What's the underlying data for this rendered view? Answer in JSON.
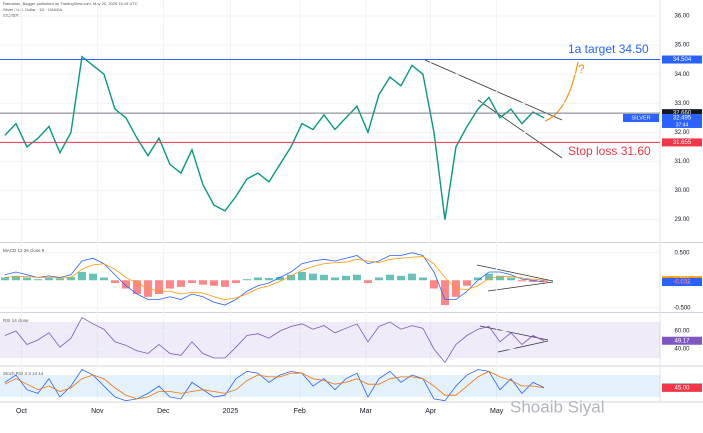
{
  "header": [
    "Ramadan_Bagger published on TradingView.com, May 20, 2025 15:15 UTC",
    "Silver / U.S. Dollar · 1D · OANDA"
  ],
  "watermark": "Shoaib Siyal",
  "x_axis": {
    "x": [
      0,
      1,
      2,
      3,
      4,
      5,
      6,
      7,
      8,
      9,
      10,
      11,
      12,
      13,
      14,
      15,
      16,
      17,
      18,
      19,
      20,
      21,
      22,
      23,
      24,
      25,
      26,
      27,
      28,
      29,
      30,
      31,
      32,
      33,
      34,
      35,
      36,
      37,
      38,
      39,
      40,
      41,
      42,
      43,
      44,
      45,
      46,
      47,
      48,
      49
    ],
    "xlim": [
      -0.45,
      59.55
    ],
    "xticks": [
      {
        "value": 1.5,
        "label": "Oct"
      },
      {
        "value": 8.4,
        "label": "Nov"
      },
      {
        "value": 14.4,
        "label": "Dec"
      },
      {
        "value": 20.5,
        "label": "2025"
      },
      {
        "value": 26.8,
        "label": "Feb"
      },
      {
        "value": 32.8,
        "label": "Mar"
      },
      {
        "value": 38.7,
        "label": "Apr"
      },
      {
        "value": 44.7,
        "label": "May"
      }
    ]
  },
  "chart_data": [
    {
      "type": "line",
      "title": "SILVER",
      "ylim": [
        28.3,
        36.55
      ],
      "yticks": [
        {
          "value": 36,
          "label": "36.00"
        },
        {
          "value": 35,
          "label": "35.00"
        },
        {
          "value": 34,
          "label": "34.00"
        },
        {
          "value": 33,
          "label": "33.00"
        },
        {
          "value": 32,
          "label": "32.00"
        },
        {
          "value": 31,
          "label": "31.00"
        },
        {
          "value": 30,
          "label": "30.00"
        },
        {
          "value": 29,
          "label": "29.00"
        }
      ],
      "series": [
        {
          "color": "#089981",
          "values": [
            31.9,
            32.3,
            31.5,
            31.8,
            32.2,
            31.3,
            32.0,
            34.6,
            34.3,
            34.0,
            32.8,
            32.5,
            31.8,
            31.2,
            31.8,
            30.9,
            30.6,
            31.4,
            30.2,
            29.5,
            29.3,
            29.8,
            30.4,
            30.6,
            30.3,
            30.9,
            31.5,
            32.3,
            32.1,
            32.6,
            32.1,
            32.5,
            32.9,
            32.0,
            33.3,
            33.9,
            33.6,
            34.3,
            34.0,
            32.0,
            29.0,
            31.5,
            32.2,
            32.8,
            33.2,
            32.5,
            32.8,
            32.3,
            32.7,
            32.5
          ]
        }
      ],
      "last_labels": [
        {
          "value": 34.504,
          "color": "#2962ff",
          "line": true
        },
        {
          "value": 32.66,
          "label": "32.660",
          "color": "#131722",
          "line": true,
          "line_color": "#787b86"
        },
        {
          "name": "SILVER",
          "value": 32.495,
          "countdown": "37:44",
          "color": "#2962ff"
        },
        {
          "value": 31.655,
          "color": "#f23645",
          "line": true
        }
      ],
      "annotations": [
        {
          "text": "1a target 34.50",
          "color": "#2962ff"
        },
        {
          "text": "Stop loss 31.60",
          "color": "#f23645"
        },
        {
          "text": "?",
          "color": "#f7931a"
        }
      ]
    },
    {
      "type": "line",
      "title": "MACD 12 26 close 9",
      "ylim": [
        -0.54,
        0.64
      ],
      "yticks": [
        {
          "value": 0.5,
          "label": "0.500"
        },
        {
          "value": -0.5,
          "label": "-0.500"
        }
      ],
      "series": [
        {
          "type": "bar",
          "color": "#26a69a",
          "negative_color": "#ff5252",
          "values": [
            0.05,
            0.08,
            0.05,
            0.02,
            0.04,
            0.03,
            0.06,
            0.15,
            0.12,
            0.05,
            -0.05,
            -0.15,
            -0.25,
            -0.3,
            -0.25,
            -0.15,
            -0.12,
            -0.05,
            -0.08,
            -0.1,
            -0.12,
            -0.05,
            0.02,
            0.05,
            0.04,
            0.06,
            0.1,
            0.15,
            0.12,
            0.1,
            0.05,
            0.08,
            0.1,
            -0.05,
            0.05,
            0.1,
            0.08,
            0.12,
            0.05,
            -0.15,
            -0.45,
            -0.3,
            -0.1,
            0.05,
            0.12,
            0.08,
            0.05,
            -0.02,
            -0.03,
            -0.033
          ]
        },
        {
          "color": "#2962ff",
          "values": [
            0.1,
            0.15,
            0.1,
            0.05,
            0.08,
            0.05,
            0.1,
            0.35,
            0.4,
            0.3,
            0.1,
            -0.1,
            -0.25,
            -0.35,
            -0.35,
            -0.3,
            -0.35,
            -0.25,
            -0.3,
            -0.4,
            -0.45,
            -0.35,
            -0.2,
            -0.1,
            -0.05,
            0.05,
            0.15,
            0.3,
            0.35,
            0.38,
            0.35,
            0.4,
            0.45,
            0.3,
            0.35,
            0.45,
            0.45,
            0.5,
            0.45,
            0.15,
            -0.35,
            -0.35,
            -0.2,
            0,
            0.15,
            0.15,
            0.1,
            0.02,
            0,
            -0.032
          ]
        },
        {
          "color": "#ff9800",
          "values": [
            0.05,
            0.07,
            0.07,
            0.05,
            0.05,
            0.04,
            0.05,
            0.2,
            0.28,
            0.3,
            0.2,
            0.05,
            -0.05,
            -0.15,
            -0.2,
            -0.2,
            -0.25,
            -0.22,
            -0.23,
            -0.3,
            -0.35,
            -0.32,
            -0.25,
            -0.15,
            -0.1,
            -0.02,
            0.08,
            0.18,
            0.25,
            0.3,
            0.32,
            0.33,
            0.38,
            0.35,
            0.32,
            0.38,
            0.4,
            0.42,
            0.43,
            0.3,
            0.05,
            -0.15,
            -0.17,
            -0.1,
            0.03,
            0.07,
            0.07,
            0.04,
            0.02,
            0.001
          ]
        }
      ],
      "last_labels": [
        {
          "value": 0.001,
          "color": "#ff9800"
        },
        {
          "value": -0.032,
          "color": "#2962ff"
        },
        {
          "value": -0.033,
          "color": "#ff5252",
          "text_only": true
        }
      ]
    },
    {
      "type": "line",
      "title": "RSI 14 close",
      "ylim": [
        22.2,
        77.8
      ],
      "yticks": [
        {
          "value": 60,
          "label": "60.00"
        },
        {
          "value": 40,
          "label": "40.00"
        }
      ],
      "band": {
        "range": [
          30,
          70
        ],
        "color": "#7e57c2"
      },
      "series": [
        {
          "color": "#7e57c2",
          "values": [
            55,
            60,
            45,
            50,
            58,
            42,
            52,
            75,
            68,
            62,
            48,
            44,
            38,
            35,
            45,
            35,
            33,
            48,
            35,
            30,
            30,
            42,
            55,
            57,
            52,
            60,
            65,
            68,
            62,
            66,
            58,
            63,
            68,
            48,
            65,
            70,
            62,
            66,
            63,
            40,
            25,
            45,
            55,
            62,
            65,
            48,
            58,
            45,
            55,
            49.17
          ]
        }
      ],
      "last_labels": [
        {
          "value": 49.17,
          "color": "#7e57c2"
        }
      ]
    },
    {
      "type": "line",
      "title": "Stoch RSI 3 3 14 14",
      "ylim": [
        10,
        100
      ],
      "yticks": [],
      "band": {
        "range": [
          20,
          80
        ],
        "color": "#2196f3"
      },
      "series": [
        {
          "color": "#2962ff",
          "values": [
            60,
            80,
            40,
            30,
            70,
            20,
            50,
            95,
            80,
            50,
            20,
            10,
            15,
            30,
            50,
            20,
            15,
            60,
            40,
            20,
            25,
            70,
            90,
            85,
            60,
            80,
            90,
            85,
            50,
            70,
            40,
            70,
            85,
            20,
            70,
            90,
            60,
            80,
            70,
            15,
            10,
            50,
            80,
            95,
            90,
            40,
            70,
            30,
            60,
            45.98
          ]
        },
        {
          "color": "#ff6d00",
          "values": [
            55,
            70,
            55,
            40,
            50,
            35,
            45,
            70,
            80,
            70,
            45,
            25,
            15,
            20,
            35,
            35,
            30,
            35,
            40,
            35,
            30,
            40,
            65,
            80,
            75,
            75,
            85,
            85,
            70,
            65,
            55,
            60,
            70,
            55,
            55,
            70,
            75,
            75,
            70,
            50,
            25,
            25,
            50,
            75,
            90,
            75,
            65,
            50,
            50,
            45
          ]
        }
      ],
      "last_labels": [
        {
          "value": 45.98,
          "color": "#089981"
        },
        {
          "value": 45,
          "label": "45.00",
          "color": "#f23645"
        }
      ]
    }
  ]
}
